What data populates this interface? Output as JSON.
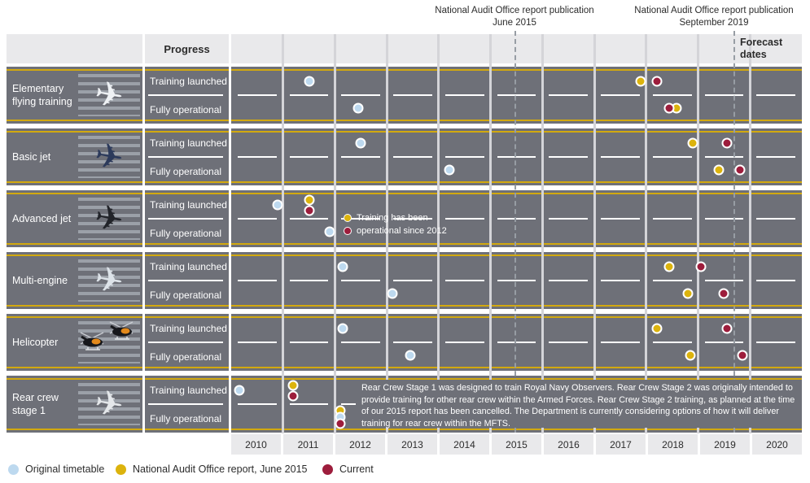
{
  "icons": {
    "plane_glyph": "✈"
  },
  "header": {
    "progress_label": "Progress",
    "forecast_label": "Forecast dates"
  },
  "chart_data": {
    "type": "scatter",
    "x_axis": {
      "years": [
        "2010",
        "2011",
        "2012",
        "2013",
        "2014",
        "2015",
        "2016",
        "2017",
        "2018",
        "2019",
        "2020"
      ],
      "range": [
        2010,
        2021
      ],
      "grid": true
    },
    "legend_position": "bottom-left",
    "legend": [
      {
        "series": "original",
        "label": "Original timetable",
        "color": "#bdd9ef"
      },
      {
        "series": "nao2015",
        "label": "National Audit Office report, June 2015",
        "color": "#dcb30d"
      },
      {
        "series": "current",
        "label": "Current",
        "color": "#9d1d3c"
      }
    ],
    "reference_lines": [
      {
        "year": 2015.47,
        "label_line1": "National Audit Office report publication",
        "label_line2": "June 2015"
      },
      {
        "year": 2019.7,
        "label_line1": "National Audit Office report publication",
        "label_line2": "September 2019"
      }
    ],
    "rows": [
      {
        "label": "Elementary flying training",
        "icon": "propeller-plane",
        "sub_rows": [
          {
            "label": "Training launched",
            "points": [
              {
                "series": "original",
                "year": 2011.5
              },
              {
                "series": "nao2015",
                "year": 2017.9
              },
              {
                "series": "current",
                "year": 2018.2
              }
            ]
          },
          {
            "label": "Fully operational",
            "points": [
              {
                "series": "original",
                "year": 2012.45
              },
              {
                "series": "nao2015",
                "year": 2018.58
              },
              {
                "series": "current",
                "year": 2018.45
              }
            ]
          }
        ]
      },
      {
        "label": "Basic jet",
        "icon": "jet-trainer",
        "sub_rows": [
          {
            "label": "Training launched",
            "points": [
              {
                "series": "original",
                "year": 2012.5
              },
              {
                "series": "nao2015",
                "year": 2018.9
              },
              {
                "series": "current",
                "year": 2019.55
              }
            ]
          },
          {
            "label": "Fully operational",
            "points": [
              {
                "series": "original",
                "year": 2014.2
              },
              {
                "series": "nao2015",
                "year": 2019.4
              },
              {
                "series": "current",
                "year": 2019.8
              }
            ]
          }
        ]
      },
      {
        "label": "Advanced jet",
        "icon": "advanced-jet",
        "sub_rows": [
          {
            "label": "Training launched",
            "points": [
              {
                "series": "original",
                "year": 2010.9
              },
              {
                "series": "nao2015",
                "year": 2011.5,
                "stack": "above"
              },
              {
                "series": "current",
                "year": 2011.5,
                "stack": "below"
              }
            ]
          },
          {
            "label": "Fully operational",
            "points": [
              {
                "series": "original",
                "year": 2011.9
              }
            ]
          }
        ]
      },
      {
        "label": "Multi-engine",
        "icon": "multi-engine-plane",
        "sub_rows": [
          {
            "label": "Training launched",
            "points": [
              {
                "series": "original",
                "year": 2012.15
              },
              {
                "series": "nao2015",
                "year": 2018.45
              },
              {
                "series": "current",
                "year": 2019.05
              }
            ]
          },
          {
            "label": "Fully operational",
            "points": [
              {
                "series": "original",
                "year": 2013.1
              },
              {
                "series": "nao2015",
                "year": 2018.8
              },
              {
                "series": "current",
                "year": 2019.5
              }
            ]
          }
        ]
      },
      {
        "label": "Helicopter",
        "icon": "helicopters",
        "sub_rows": [
          {
            "label": "Training launched",
            "points": [
              {
                "series": "original",
                "year": 2012.15
              },
              {
                "series": "nao2015",
                "year": 2018.2
              },
              {
                "series": "current",
                "year": 2019.55
              }
            ]
          },
          {
            "label": "Fully operational",
            "points": [
              {
                "series": "original",
                "year": 2013.45
              },
              {
                "series": "nao2015",
                "year": 2018.85
              },
              {
                "series": "current",
                "year": 2019.85
              }
            ]
          }
        ]
      },
      {
        "label": "Rear crew stage 1",
        "icon": "twin-prop-plane",
        "sub_rows": [
          {
            "label": "Training launched",
            "points": [
              {
                "series": "original",
                "year": 2010.15
              },
              {
                "series": "nao2015",
                "year": 2011.2,
                "stack": "above"
              },
              {
                "series": "current",
                "year": 2011.2,
                "stack": "below"
              }
            ]
          },
          {
            "label": "Fully operational",
            "points": [
              {
                "series": "nao2015",
                "year": 2012.1,
                "stack": "above"
              },
              {
                "series": "original",
                "year": 2012.1
              },
              {
                "series": "current",
                "year": 2012.1,
                "stack": "below"
              }
            ]
          }
        ]
      }
    ],
    "advanced_jet_note": {
      "line1": "Training has been",
      "line2": "operational since 2012"
    },
    "rear_crew_note": "Rear Crew Stage 1 was designed to train Royal Navy Observers. Rear Crew Stage 2 was originally intended to provide training for other rear crew within the Armed Forces. Rear Crew Stage 2 training, as planned at the time of our 2015 report has been cancelled. The Department is currently considering options of how it will deliver training for rear crew within the MFTS."
  },
  "colors": {
    "row_background": "#6e7078",
    "band_background": "#e9e9eb",
    "accent_yellow_line": "#d2a90f",
    "gridline": "#d4d4d8",
    "reference_line": "#979da4"
  }
}
